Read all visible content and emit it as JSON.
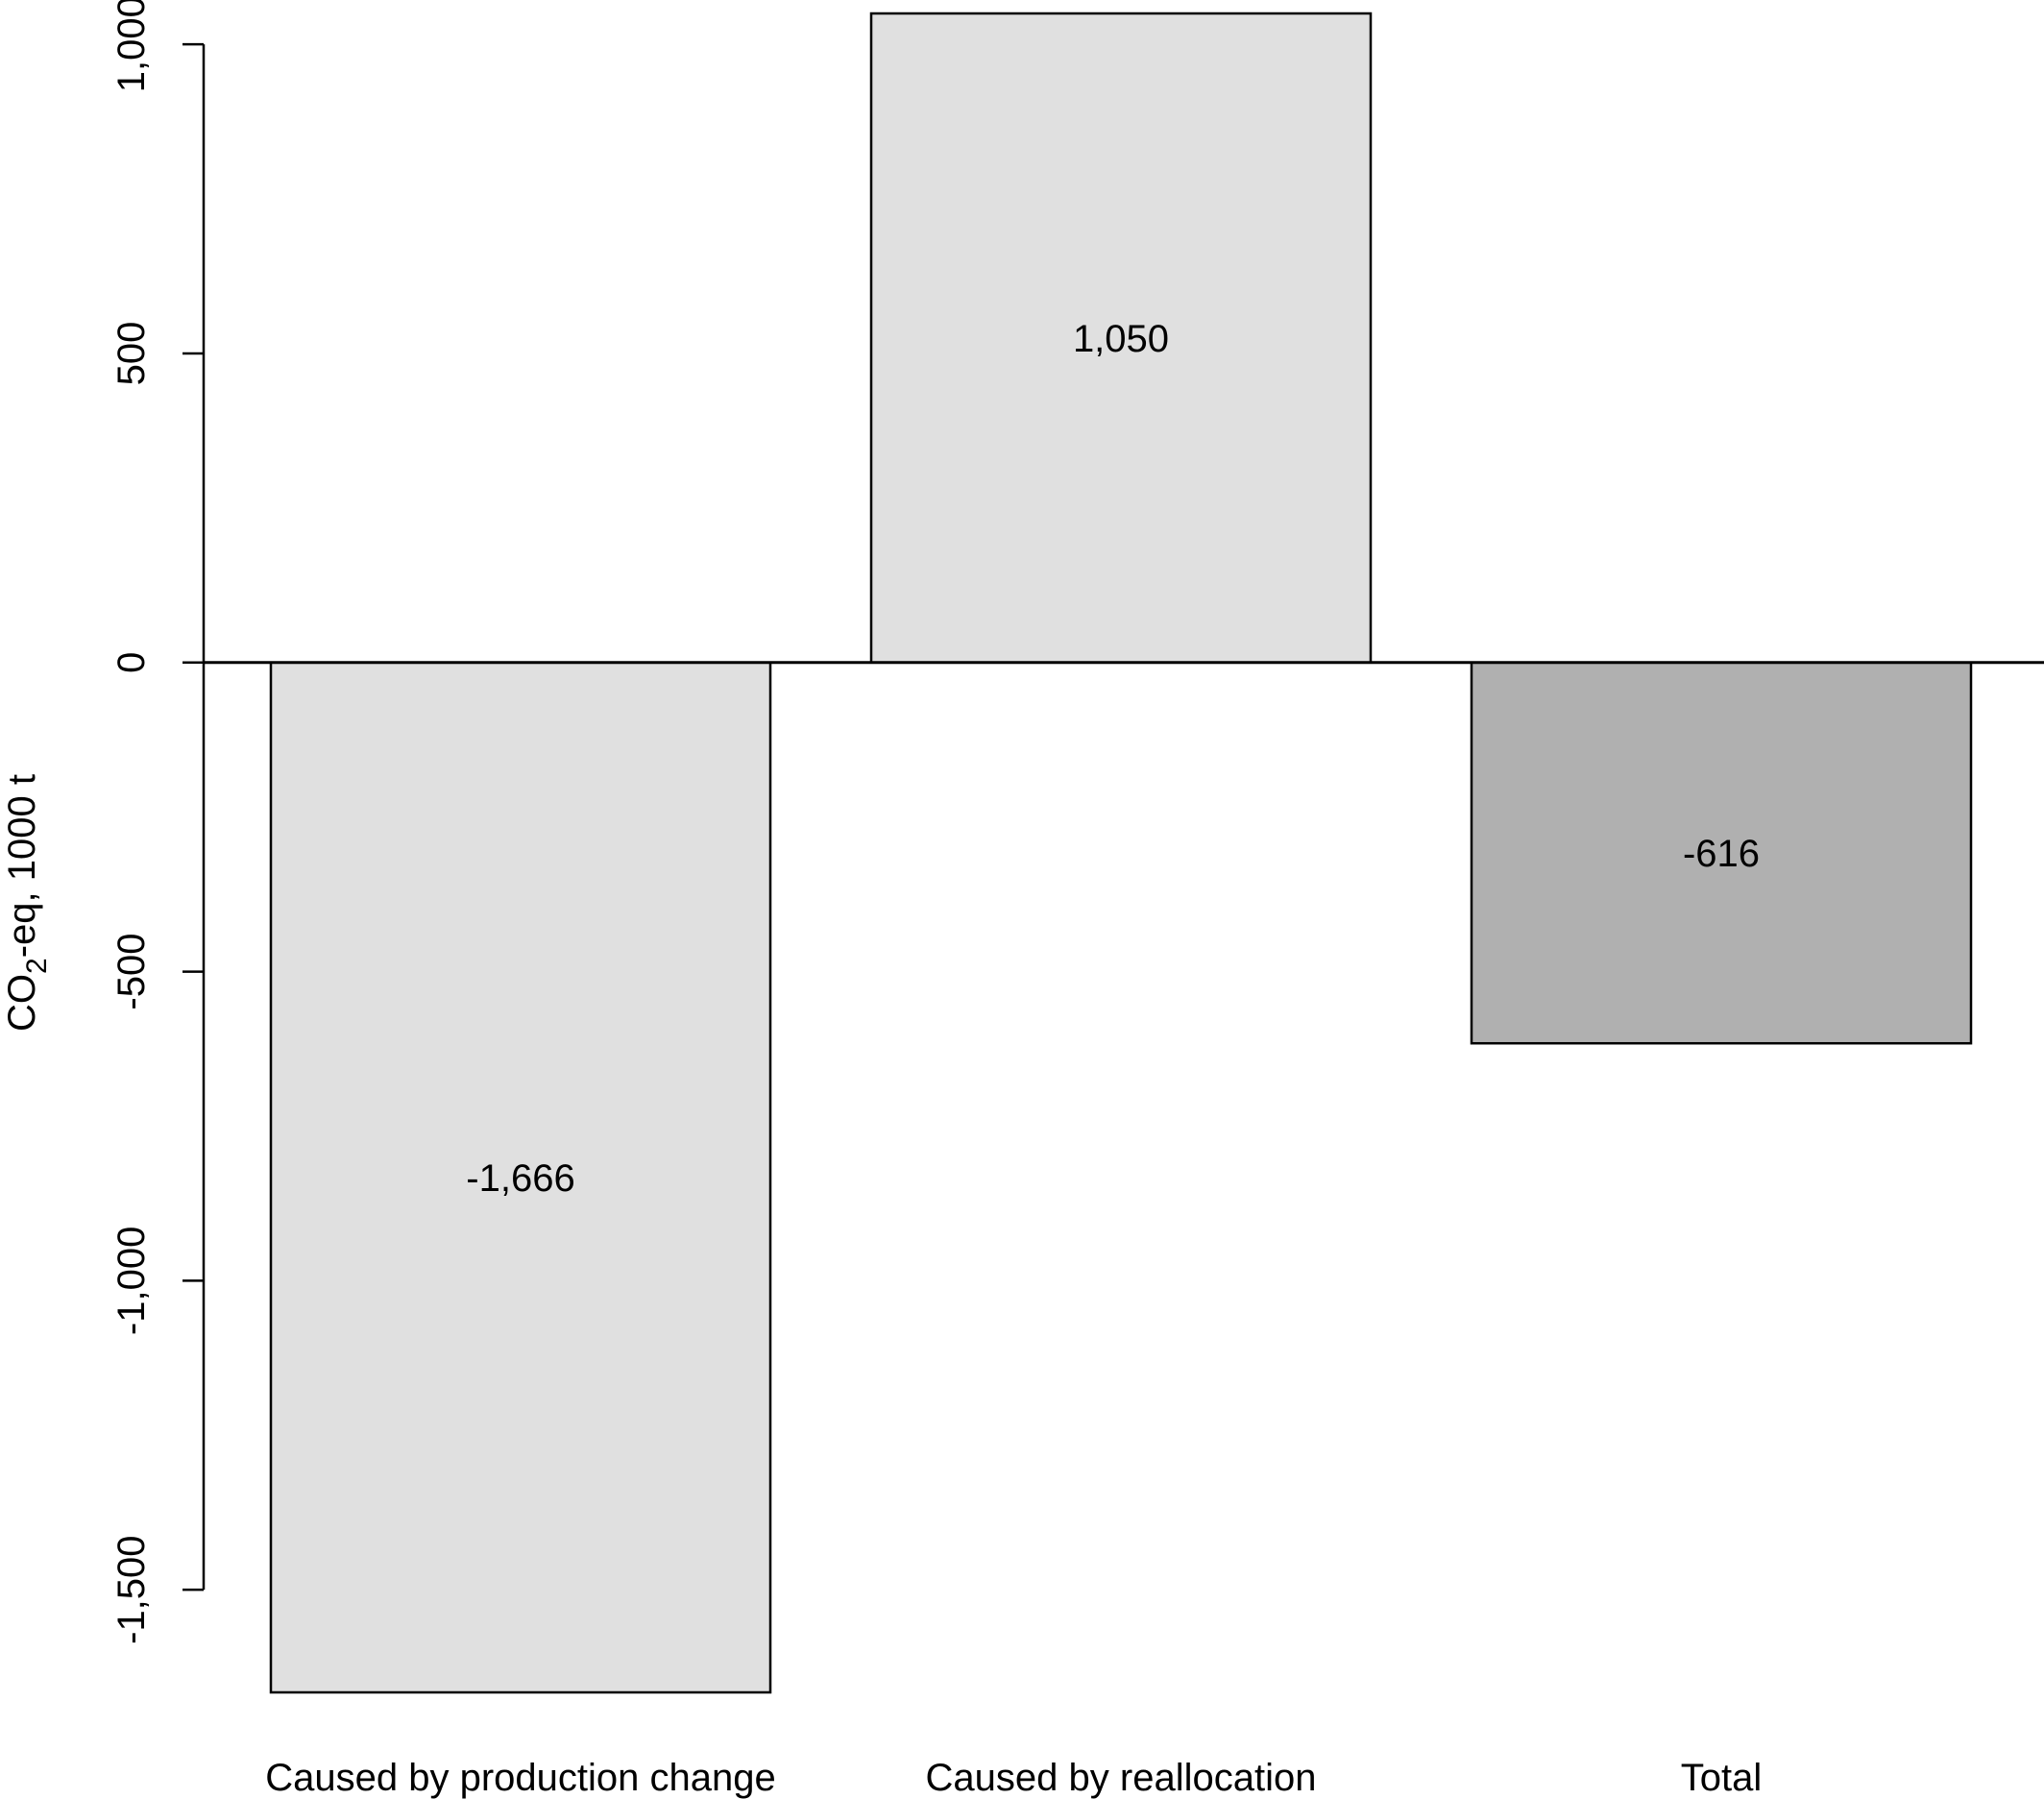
{
  "chart_data": {
    "type": "bar",
    "categories": [
      "Caused by production change",
      "Caused by reallocation",
      "Total"
    ],
    "values": [
      -1666,
      1050,
      -616
    ],
    "value_labels": [
      "-1,666",
      "1,050",
      "-616"
    ],
    "bar_colors": [
      "#e0e0e0",
      "#e0e0e0",
      "#b0b0b0"
    ],
    "ylabel": {
      "main": "CO",
      "subscript": "2",
      "rest": "-eq, 1000 t"
    },
    "ylim": [
      -1666,
      1050
    ],
    "yticks": [
      -1500,
      -1000,
      -500,
      0,
      500,
      1000
    ],
    "ytick_labels": [
      "-1,500",
      "-1,000",
      "-500",
      "0",
      "500",
      "1,000"
    ],
    "grid": false,
    "zero_line": true
  }
}
